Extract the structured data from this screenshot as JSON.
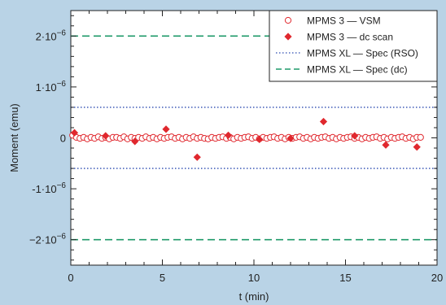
{
  "chart_data": {
    "type": "scatter",
    "xlabel": "t (min)",
    "ylabel": "Moment (emu)",
    "xlim": [
      0,
      20
    ],
    "ylim": [
      -2.5e-06,
      2.5e-06
    ],
    "x_ticks": [
      {
        "v": 0,
        "label": "0"
      },
      {
        "v": 5,
        "label": "5"
      },
      {
        "v": 10,
        "label": "10"
      },
      {
        "v": 15,
        "label": "15"
      },
      {
        "v": 20,
        "label": "20"
      }
    ],
    "y_ticks": [
      {
        "v": 2e-06,
        "base": "2·10",
        "exp": "−6"
      },
      {
        "v": 1e-06,
        "base": "1·10",
        "exp": "−6"
      },
      {
        "v": 0,
        "base": "0",
        "exp": ""
      },
      {
        "v": -1e-06,
        "base": "-1·10",
        "exp": "−6"
      },
      {
        "v": -2e-06,
        "base": "−2·10",
        "exp": "−6"
      }
    ],
    "colors": {
      "plot_bg": "#ffffff",
      "page_bg": "#b9d3e6",
      "red": "#e0282e",
      "blue": "#2a4ab0",
      "green": "#1f9a6a"
    },
    "series": [
      {
        "name": "MPMS 3 — VSM",
        "marker": "open-circle",
        "color": "#e0282e",
        "x_start": 0.1,
        "x_step": 0.2,
        "y": [
          5e-08,
          1e-08,
          -1e-08,
          1e-08,
          -2e-08,
          1e-08,
          -1e-08,
          2e-08,
          -1e-08,
          1e-08,
          -2e-08,
          1e-08,
          1e-08,
          -1e-08,
          2e-08,
          -2e-08,
          1e-08,
          -1e-08,
          1e-08,
          -1e-08,
          2e-08,
          -1e-08,
          1e-08,
          -2e-08,
          1e-08,
          -1e-08,
          1e-08,
          2e-08,
          -1e-08,
          1e-08,
          -2e-08,
          1e-08,
          -1e-08,
          2e-08,
          -1e-08,
          1e-08,
          -1e-08,
          -2e-08,
          1e-08,
          -1e-08,
          1e-08,
          2e-08,
          -1e-08,
          1e-08,
          -2e-08,
          1e-08,
          -1e-08,
          1e-08,
          2e-08,
          -1e-08,
          1e-08,
          -2e-08,
          1e-08,
          -1e-08,
          1e-08,
          2e-08,
          -1e-08,
          1e-08,
          -2e-08,
          1e-08,
          -1e-08,
          1e-08,
          2e-08,
          -1e-08,
          1e-08,
          -2e-08,
          1e-08,
          -1e-08,
          1e-08,
          2e-08,
          -1e-08,
          1e-08,
          -2e-08,
          1e-08,
          -1e-08,
          1e-08,
          2e-08,
          -1e-08,
          1e-08,
          -2e-08,
          1e-08,
          -1e-08,
          1e-08,
          2e-08,
          -1e-08,
          1e-08,
          -2e-08,
          1e-08,
          -1e-08,
          1e-08,
          2e-08,
          -1e-08,
          1e-08,
          -2e-08,
          1e-08,
          1e-08
        ]
      },
      {
        "name": "MPMS 3 — dc scan",
        "marker": "filled-diamond",
        "color": "#e0282e",
        "points": [
          {
            "x": 0.2,
            "y": 1e-07
          },
          {
            "x": 1.9,
            "y": 4e-08
          },
          {
            "x": 3.5,
            "y": -7e-08
          },
          {
            "x": 5.2,
            "y": 1.7e-07
          },
          {
            "x": 6.9,
            "y": -3.8e-07
          },
          {
            "x": 8.6,
            "y": 5e-08
          },
          {
            "x": 10.3,
            "y": -3e-08
          },
          {
            "x": 12.0,
            "y": -1e-08
          },
          {
            "x": 13.8,
            "y": 3.2e-07
          },
          {
            "x": 15.5,
            "y": 4e-08
          },
          {
            "x": 17.2,
            "y": -1.4e-07
          },
          {
            "x": 18.9,
            "y": -1.8e-07
          }
        ]
      },
      {
        "name": "MPMS XL — Spec (RSO)",
        "style": "dotted",
        "color": "#2a4ab0",
        "y_values": [
          6e-07,
          -6e-07
        ]
      },
      {
        "name": "MPMS XL — Spec (dc)",
        "style": "dashed",
        "color": "#1f9a6a",
        "y_values": [
          2e-06,
          -2e-06
        ]
      }
    ],
    "legend_position": "top-right"
  }
}
